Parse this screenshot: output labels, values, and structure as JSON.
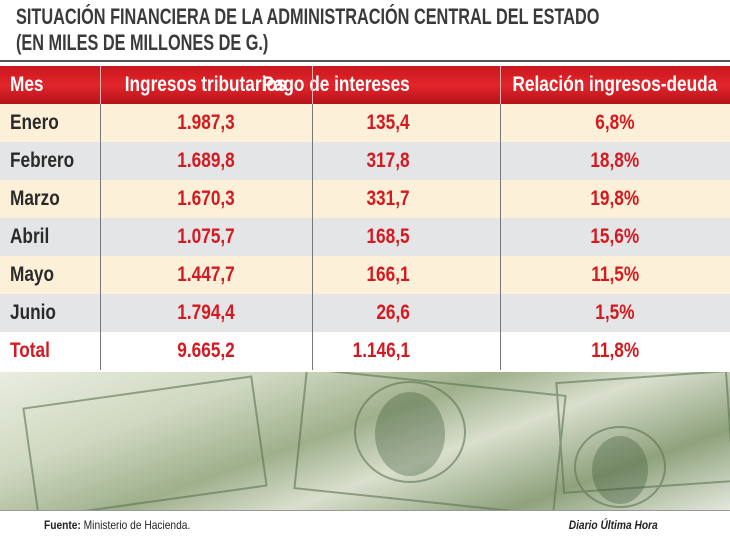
{
  "header": {
    "title_lines": [
      "SITUACIÓN FINANCIERA DE LA ADMINISTRACIÓN CENTRAL DEL ESTADO",
      "(EN MILES DE MILLONES DE G.)"
    ]
  },
  "table": {
    "columns": [
      "Mes",
      "Ingresos tributarios",
      "Pago de intereses",
      "Relación ingresos-deuda"
    ],
    "rows": [
      [
        "Enero",
        "1.987,3",
        "135,4",
        "6,8%"
      ],
      [
        "Febrero",
        "1.689,8",
        "317,8",
        "18,8%"
      ],
      [
        "Marzo",
        "1.670,3",
        "331,7",
        "19,8%"
      ],
      [
        "Abril",
        "1.075,7",
        "168,5",
        "15,6%"
      ],
      [
        "Mayo",
        "1.447,7",
        "166,1",
        "11,5%"
      ],
      [
        "Junio",
        "1.794,4",
        "26,6",
        "1,5%"
      ]
    ],
    "total": [
      "Total",
      "9.665,2",
      "1.146,1",
      "11,8%"
    ]
  },
  "footer": {
    "source_label": "Fuente:",
    "source": "Ministerio de Hacienda.",
    "credit": "Diario Última Hora"
  }
}
